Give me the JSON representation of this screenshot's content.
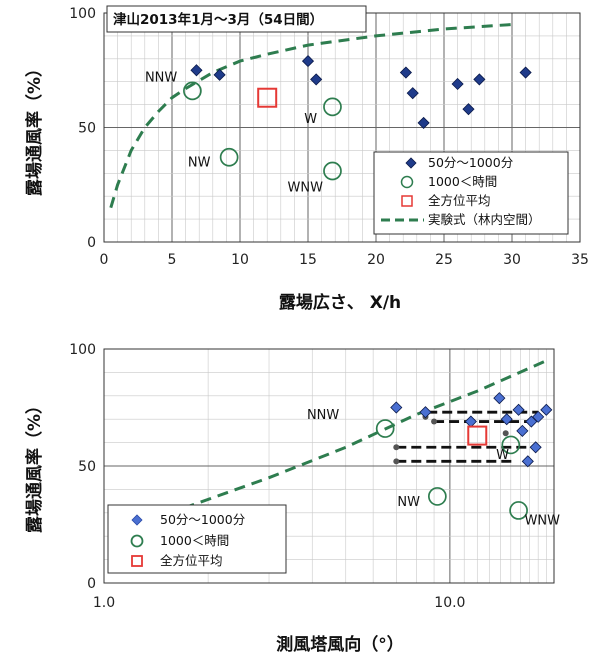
{
  "chart_data": [
    {
      "type": "scatter",
      "title": "津山2013年1月～3月（54日間）",
      "xlabel": "露場広さ、 X/h",
      "ylabel": "露場通風率（%）",
      "xlim": [
        0,
        35
      ],
      "ylim": [
        0,
        100
      ],
      "x_ticks": [
        0,
        5,
        10,
        15,
        20,
        25,
        30,
        35
      ],
      "y_ticks": [
        0,
        50,
        100
      ],
      "x_scale": "linear",
      "grid": true,
      "legend_position": "bottom-right",
      "series": [
        {
          "name": "50分～1000分",
          "marker": "diamond",
          "color": "#1f3b8a",
          "points": [
            [
              6.8,
              75
            ],
            [
              8.5,
              73
            ],
            [
              15.0,
              79
            ],
            [
              15.6,
              71
            ],
            [
              22.2,
              74
            ],
            [
              22.7,
              65
            ],
            [
              23.5,
              52
            ],
            [
              26.0,
              69
            ],
            [
              26.8,
              58
            ],
            [
              27.6,
              71
            ],
            [
              31.0,
              74
            ]
          ]
        },
        {
          "name": "1000＜時間",
          "marker": "circle",
          "color": "#2e7d4f",
          "points": [
            [
              6.5,
              66
            ],
            [
              9.2,
              37
            ],
            [
              16.8,
              59
            ],
            [
              16.8,
              31
            ]
          ]
        },
        {
          "name": "全方位平均",
          "marker": "square",
          "color": "#e53935",
          "points": [
            [
              12.0,
              63
            ]
          ]
        },
        {
          "name": "実験式（林内空間）",
          "marker": "dashed-line",
          "color": "#2e7d4f",
          "curve": [
            [
              0.5,
              15
            ],
            [
              1,
              25
            ],
            [
              2,
              40
            ],
            [
              3,
              50
            ],
            [
              4,
              57
            ],
            [
              5,
              63
            ],
            [
              6,
              67
            ],
            [
              8,
              74
            ],
            [
              10,
              79
            ],
            [
              12,
              82
            ],
            [
              15,
              86
            ],
            [
              20,
              90
            ],
            [
              25,
              93
            ],
            [
              30,
              95
            ]
          ]
        }
      ],
      "annotations": [
        {
          "text": "NNW",
          "x": 4.2,
          "y": 70
        },
        {
          "text": "W",
          "x": 15.2,
          "y": 52
        },
        {
          "text": "NW",
          "x": 7.0,
          "y": 33
        },
        {
          "text": "WNW",
          "x": 14.8,
          "y": 22
        }
      ]
    },
    {
      "type": "scatter",
      "title": "",
      "xlabel": "測風塔風向（°）",
      "ylabel": "露場通風率（%）",
      "xlim": [
        1,
        20
      ],
      "ylim": [
        0,
        100
      ],
      "x_scale": "log",
      "x_ticks": [
        {
          "value": 1,
          "label": "1.0"
        },
        {
          "value": 10,
          "label": "10.0"
        }
      ],
      "y_ticks": [
        0,
        50,
        100
      ],
      "grid": true,
      "legend_position": "bottom-left",
      "series": [
        {
          "name": "50分～1000分",
          "marker": "diamond",
          "color": "#4a6fd1",
          "points": [
            [
              7.0,
              75
            ],
            [
              8.5,
              73
            ],
            [
              11.5,
              69
            ],
            [
              13.9,
              79
            ],
            [
              14.6,
              70
            ],
            [
              15.8,
              74
            ],
            [
              16.2,
              65
            ],
            [
              16.8,
              52
            ],
            [
              17.2,
              69
            ],
            [
              17.7,
              58
            ],
            [
              18.0,
              71
            ],
            [
              19.0,
              74
            ]
          ]
        },
        {
          "name": "1000＜時間",
          "marker": "circle",
          "color": "#2e7d4f",
          "points": [
            [
              6.5,
              66
            ],
            [
              9.2,
              37
            ],
            [
              15.0,
              59
            ],
            [
              15.8,
              31
            ]
          ]
        },
        {
          "name": "全方位平均",
          "marker": "square",
          "color": "#e53935",
          "points": [
            [
              12.0,
              63
            ]
          ]
        },
        {
          "name": "",
          "marker": "small-dot",
          "color": "#555555",
          "points": [
            [
              7.0,
              52
            ],
            [
              7.0,
              58
            ],
            [
              8.5,
              71
            ],
            [
              9.0,
              69
            ],
            [
              14.5,
              64
            ]
          ]
        },
        {
          "name": "",
          "marker": "dashed-line",
          "color": "#2e7d4f",
          "curve": [
            [
              1.7,
              32
            ],
            [
              3,
              45
            ],
            [
              5,
              58
            ],
            [
              8,
              72
            ],
            [
              12,
              82
            ],
            [
              19,
              95
            ]
          ]
        },
        {
          "name": "",
          "marker": "black-dashed",
          "color": "#111111",
          "segments": [
            {
              "x1": 8.6,
              "x2": 18.0,
              "y": 73
            },
            {
              "x1": 9.0,
              "x2": 17.5,
              "y": 69
            },
            {
              "x1": 7.0,
              "x2": 16.8,
              "y": 58
            },
            {
              "x1": 7.0,
              "x2": 15.5,
              "y": 52
            }
          ]
        }
      ],
      "annotations": [
        {
          "text": "NNW",
          "x": 4.3,
          "y": 70
        },
        {
          "text": "W",
          "x": 14.2,
          "y": 53
        },
        {
          "text": "NW",
          "x": 7.6,
          "y": 33
        },
        {
          "text": "WNW",
          "x": 18.5,
          "y": 25
        }
      ]
    }
  ]
}
